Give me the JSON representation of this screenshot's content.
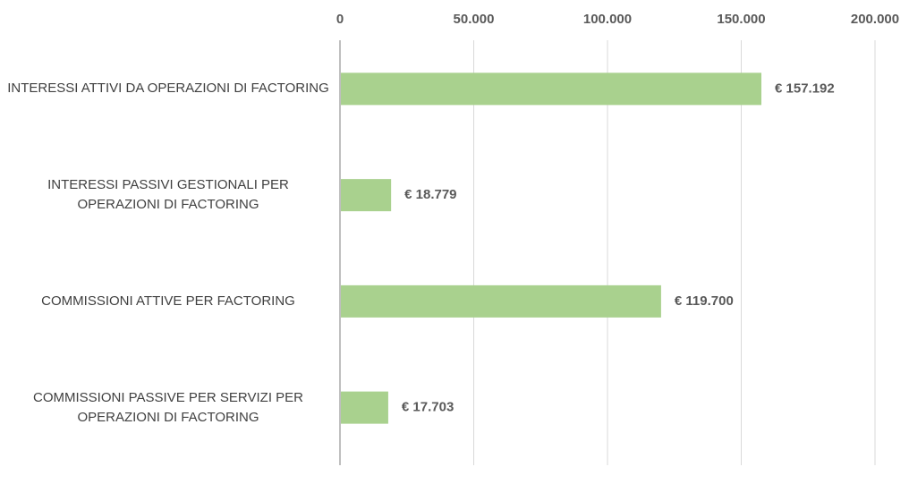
{
  "chart_data": {
    "type": "bar",
    "orientation": "horizontal",
    "categories": [
      "INTERESSI ATTIVI DA OPERAZIONI DI FACTORING",
      "INTERESSI PASSIVI GESTIONALI PER OPERAZIONI DI FACTORING",
      "COMMISSIONI ATTIVE PER FACTORING",
      "COMMISSIONI PASSIVE PER SERVIZI PER OPERAZIONI DI FACTORING"
    ],
    "values": [
      157192,
      18779,
      119700,
      17703
    ],
    "value_labels": [
      "€ 157.192",
      "€ 18.779",
      "€ 119.700",
      "€ 17.703"
    ],
    "color": "#a9d18e",
    "xlim": [
      0,
      200000
    ],
    "xticks": [
      0,
      {
        "value": 50000,
        "label": "50.000"
      },
      {
        "value": 100000,
        "label": "100.000"
      },
      {
        "value": 150000,
        "label": "150.000"
      },
      {
        "value": 200000,
        "label": "200.000"
      }
    ],
    "grid": true
  }
}
